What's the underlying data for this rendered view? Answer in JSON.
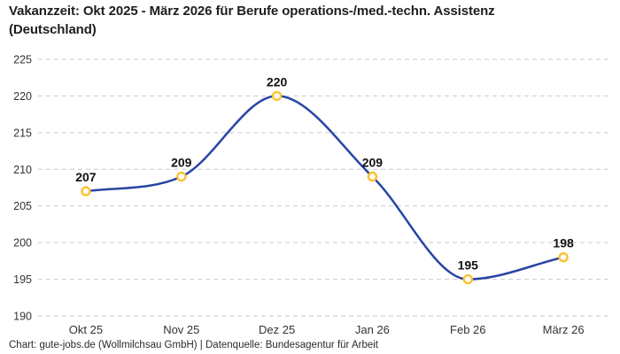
{
  "header": {
    "title": "Vakanzzeit: Okt 2025 - März 2026 für Berufe operations-/med.-techn. Assistenz (Deutschland)"
  },
  "footer": {
    "attribution": "Chart: gute-jobs.de (Wollmilchsau GmbH) | Datenquelle: Bundesagentur für Arbeit"
  },
  "chart_data": {
    "type": "line",
    "series_name": "Vakanzzeit",
    "categories": [
      "Okt 25",
      "Nov 25",
      "Dez 25",
      "Jan 26",
      "Feb 26",
      "März 26"
    ],
    "values": [
      207,
      209,
      220,
      209,
      195,
      198
    ],
    "data_labels": [
      207,
      209,
      220,
      209,
      195,
      198
    ],
    "ylim": [
      190,
      225
    ],
    "yticks": [
      190,
      195,
      200,
      205,
      210,
      215,
      220,
      225
    ],
    "grid": "horizontal-dashed",
    "legend": "none",
    "colors": {
      "line": "#2745a4",
      "marker_fill": "#ffffff",
      "marker_stroke": "#fbc130",
      "grid_line": "#c9c9c9",
      "axis_label": "#333333",
      "data_label": "#111111"
    }
  }
}
